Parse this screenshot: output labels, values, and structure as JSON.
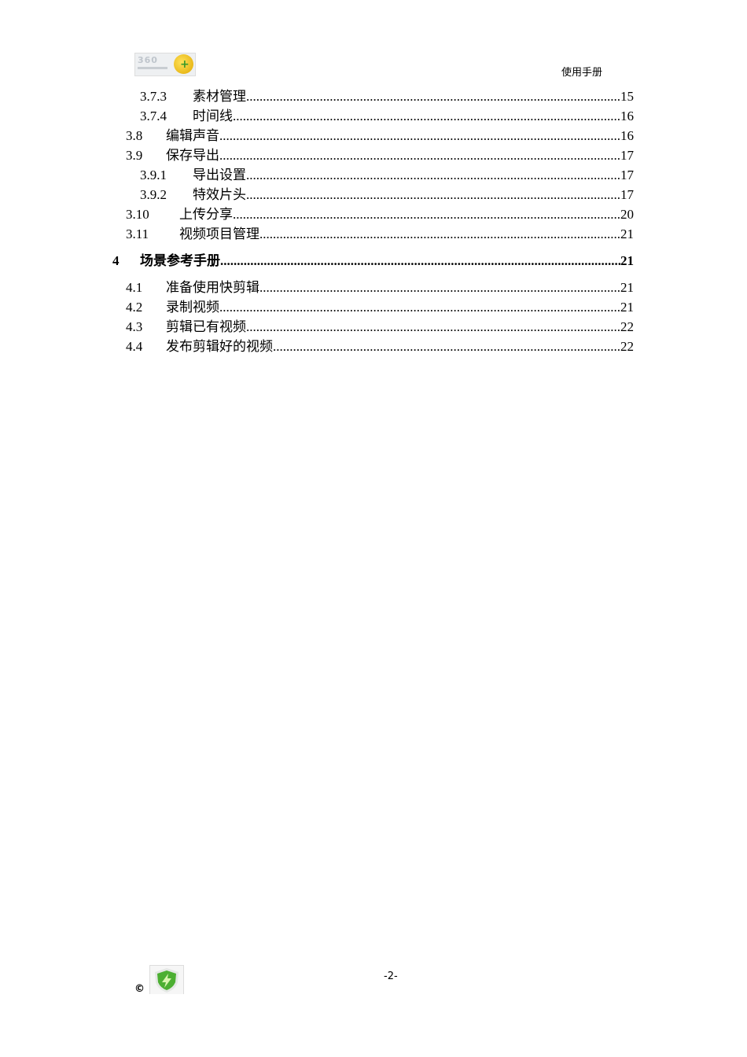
{
  "header": {
    "logo_text": "360",
    "title": "使用手册"
  },
  "toc": [
    {
      "level": 3,
      "num": "3.7.3",
      "title": "素材管理",
      "page": "15"
    },
    {
      "level": 3,
      "num": "3.7.4",
      "title": "时间线",
      "page": "16"
    },
    {
      "level": 2,
      "num": "3.8",
      "title": "编辑声音",
      "page": "16"
    },
    {
      "level": 2,
      "num": "3.9",
      "title": "保存导出",
      "page": "17"
    },
    {
      "level": 3,
      "num": "3.9.1",
      "title": "导出设置",
      "page": "17"
    },
    {
      "level": 3,
      "num": "3.9.2",
      "title": "特效片头",
      "page": "17"
    },
    {
      "level": 2,
      "num": "3.10",
      "title": "上传分享",
      "page": "20"
    },
    {
      "level": 2,
      "num": "3.11",
      "title": "视频项目管理",
      "page": "21"
    },
    {
      "level": 1,
      "num": "4",
      "title": "场景参考手册",
      "page": "21"
    },
    {
      "level": 2,
      "num": "4.1",
      "title": "准备使用快剪辑",
      "page": "21"
    },
    {
      "level": 2,
      "num": "4.2",
      "title": "录制视频",
      "page": "21"
    },
    {
      "level": 2,
      "num": "4.3",
      "title": "剪辑已有视频",
      "page": "22"
    },
    {
      "level": 2,
      "num": "4.4",
      "title": "发布剪辑好的视频",
      "page": "22"
    }
  ],
  "footer": {
    "copyright": "©",
    "page_number": "-2-"
  }
}
